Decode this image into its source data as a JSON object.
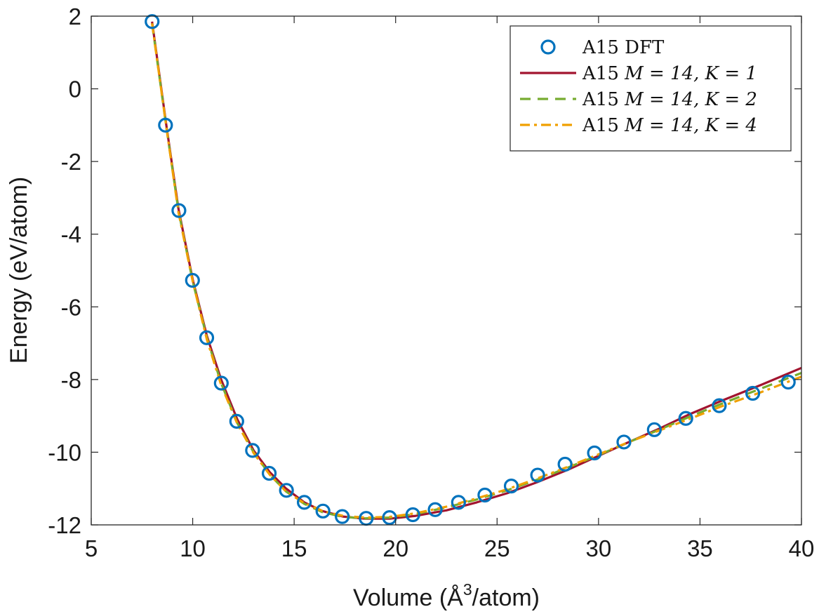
{
  "chart_data": {
    "type": "line",
    "xlabel": {
      "prefix": "Volume (Å",
      "sup": "3",
      "suffix": "/atom)"
    },
    "ylabel": "Energy (eV/atom)",
    "xlim": [
      5,
      40
    ],
    "ylim": [
      -12,
      2
    ],
    "xticks": [
      "5",
      "10",
      "15",
      "20",
      "25",
      "30",
      "35",
      "40"
    ],
    "yticks": [
      "-12",
      "-10",
      "-8",
      "-6",
      "-4",
      "-2",
      "0",
      "2"
    ],
    "legend_position": "top-right",
    "series": [
      {
        "name": "A15 DFT",
        "label_parts": {
          "plain": "A15 DFT"
        },
        "style": "markers",
        "color": "#0072BD",
        "x": [
          8.0,
          8.66,
          9.32,
          9.99,
          10.69,
          11.41,
          12.17,
          12.95,
          13.77,
          14.62,
          15.5,
          16.42,
          17.37,
          18.55,
          19.7,
          20.85,
          21.95,
          23.1,
          24.4,
          25.7,
          27.0,
          28.35,
          29.8,
          31.25,
          32.75,
          34.3,
          35.95,
          37.6,
          39.35
        ],
        "y": [
          1.85,
          -1.0,
          -3.35,
          -5.27,
          -6.85,
          -8.1,
          -9.15,
          -9.95,
          -10.58,
          -11.05,
          -11.38,
          -11.62,
          -11.77,
          -11.82,
          -11.8,
          -11.72,
          -11.58,
          -11.38,
          -11.18,
          -10.93,
          -10.63,
          -10.33,
          -10.02,
          -9.72,
          -9.38,
          -9.07,
          -8.72,
          -8.38,
          -8.07
        ]
      },
      {
        "name": "A15 M = 14, K = 1",
        "label_parts": {
          "plain": "A15 ",
          "math": "M = 14, K = 1"
        },
        "style": "solid",
        "color": "#A2142F",
        "x": [
          8.0,
          8.7,
          9.3,
          10.0,
          10.7,
          11.4,
          12.2,
          13.0,
          13.8,
          14.6,
          15.5,
          16.4,
          17.4,
          18.5,
          19.7,
          21.0,
          22.5,
          24.0,
          25.5,
          27.0,
          28.5,
          30.0,
          31.5,
          33.0,
          34.5,
          36.0,
          38.0,
          40.0
        ],
        "y": [
          1.85,
          -1.0,
          -3.3,
          -5.25,
          -6.8,
          -8.0,
          -9.1,
          -9.95,
          -10.55,
          -11.0,
          -11.38,
          -11.62,
          -11.77,
          -11.83,
          -11.83,
          -11.75,
          -11.6,
          -11.38,
          -11.13,
          -10.82,
          -10.48,
          -10.1,
          -9.72,
          -9.35,
          -8.95,
          -8.6,
          -8.15,
          -7.68
        ]
      },
      {
        "name": "A15 M = 14, K = 2",
        "label_parts": {
          "plain": "A15 ",
          "math": "M = 14, K = 2"
        },
        "style": "dashed",
        "color": "#77AC30",
        "x": [
          8.0,
          8.7,
          9.3,
          10.0,
          10.7,
          11.4,
          12.2,
          13.0,
          13.8,
          14.6,
          15.5,
          16.4,
          17.4,
          18.5,
          19.7,
          21.0,
          22.5,
          24.0,
          25.5,
          27.0,
          28.5,
          30.0,
          31.5,
          33.0,
          34.5,
          36.0,
          38.0,
          40.0
        ],
        "y": [
          1.8,
          -1.05,
          -3.35,
          -5.3,
          -6.85,
          -8.1,
          -9.2,
          -10.0,
          -10.62,
          -11.08,
          -11.42,
          -11.65,
          -11.78,
          -11.82,
          -11.8,
          -11.7,
          -11.52,
          -11.3,
          -11.05,
          -10.75,
          -10.42,
          -10.08,
          -9.72,
          -9.38,
          -9.02,
          -8.68,
          -8.25,
          -7.82
        ]
      },
      {
        "name": "A15 M = 14, K = 4",
        "label_parts": {
          "plain": "A15 ",
          "math": "M = 14, K = 4"
        },
        "style": "dashdot",
        "color": "#F0A000",
        "x": [
          8.0,
          8.7,
          9.3,
          10.0,
          10.7,
          11.4,
          12.2,
          13.0,
          13.8,
          14.6,
          15.5,
          16.4,
          17.4,
          18.5,
          19.7,
          21.0,
          22.5,
          24.0,
          25.5,
          27.0,
          28.5,
          30.0,
          31.5,
          33.0,
          34.5,
          36.0,
          38.0,
          40.0
        ],
        "y": [
          1.8,
          -1.05,
          -3.4,
          -5.3,
          -6.9,
          -8.15,
          -9.22,
          -10.02,
          -10.62,
          -11.08,
          -11.4,
          -11.62,
          -11.75,
          -11.8,
          -11.78,
          -11.68,
          -11.5,
          -11.27,
          -11.02,
          -10.72,
          -10.4,
          -10.06,
          -9.72,
          -9.4,
          -9.08,
          -8.75,
          -8.35,
          -7.92
        ]
      }
    ]
  }
}
